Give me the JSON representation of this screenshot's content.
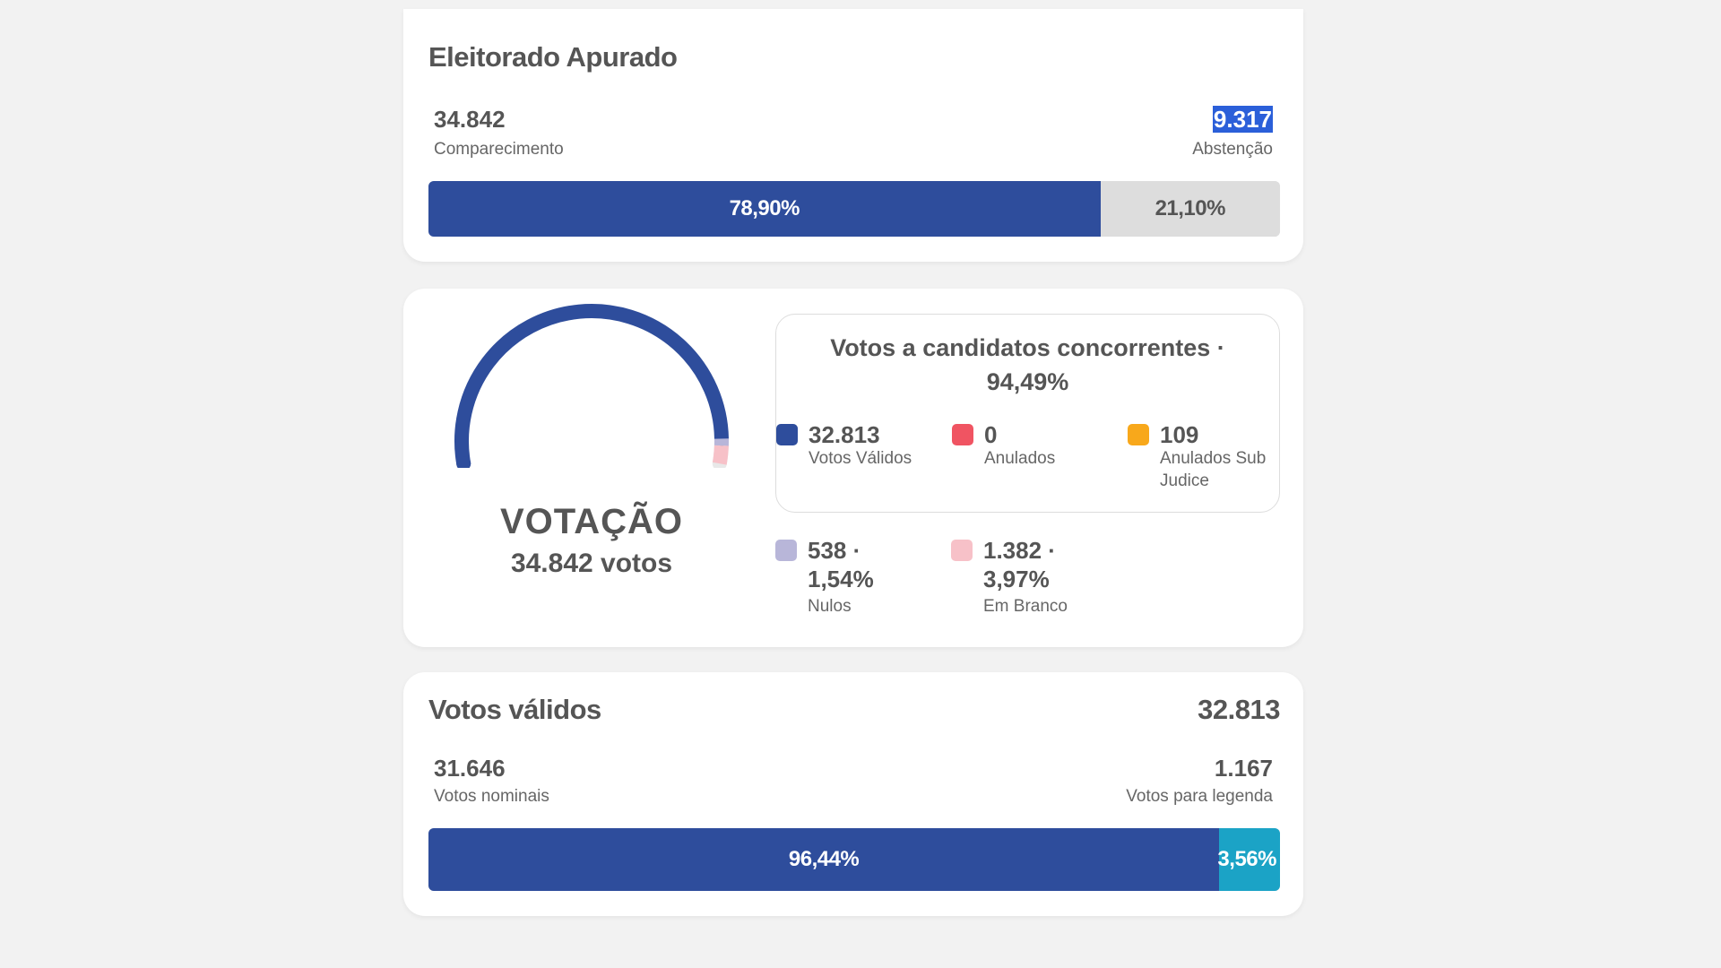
{
  "eleitorado": {
    "title": "Eleitorado Apurado",
    "comparecimento_value": "34.842",
    "comparecimento_label": "Comparecimento",
    "abstencao_value": "9.317",
    "abstencao_label": "Abstenção",
    "bar": {
      "comparecimento_pct_label": "78,90%",
      "abstencao_pct_label": "21,10%",
      "comparecimento_fraction": 0.789
    }
  },
  "votacao": {
    "title": "VOTAÇÃO",
    "subtitle": "34.842 votos",
    "gauge": {
      "segments": [
        {
          "name": "Votos Válidos",
          "fraction": 0.9449,
          "color": "#2e4d9c"
        },
        {
          "name": "Nulos",
          "fraction": 0.0154,
          "color": "#b8b6d9"
        },
        {
          "name": "Em Branco",
          "fraction": 0.0397,
          "color": "#f7c1c8"
        }
      ]
    },
    "concorrentes": {
      "title_line1": "Votos a candidatos concorrentes ·",
      "title_line2": "94,49%",
      "items": [
        {
          "value": "32.813",
          "label": "Votos Válidos",
          "color": "#2e4d9c"
        },
        {
          "value": "0",
          "label": "Anulados",
          "color": "#f05462"
        },
        {
          "value": "109",
          "label": "Anulados Sub Judice",
          "color": "#f8a81b"
        }
      ]
    },
    "others": [
      {
        "value_line1": "538 ·",
        "value_line2": "1,54%",
        "label": "Nulos",
        "color": "#b8b6d9"
      },
      {
        "value_line1": "1.382 ·",
        "value_line2": "3,97%",
        "label": "Em Branco",
        "color": "#f7c1c8"
      }
    ]
  },
  "validos": {
    "title": "Votos válidos",
    "total": "32.813",
    "nominais_value": "31.646",
    "nominais_label": "Votos nominais",
    "legenda_value": "1.167",
    "legenda_label": "Votos para legenda",
    "bar": {
      "nominais_pct_label": "96,44%",
      "legenda_pct_label": "3,56%",
      "nominais_fraction": 0.9644
    }
  },
  "colors": {
    "primary": "#2e4d9c",
    "legenda": "#1ba3c6",
    "bar_bg": "#dddddd"
  }
}
